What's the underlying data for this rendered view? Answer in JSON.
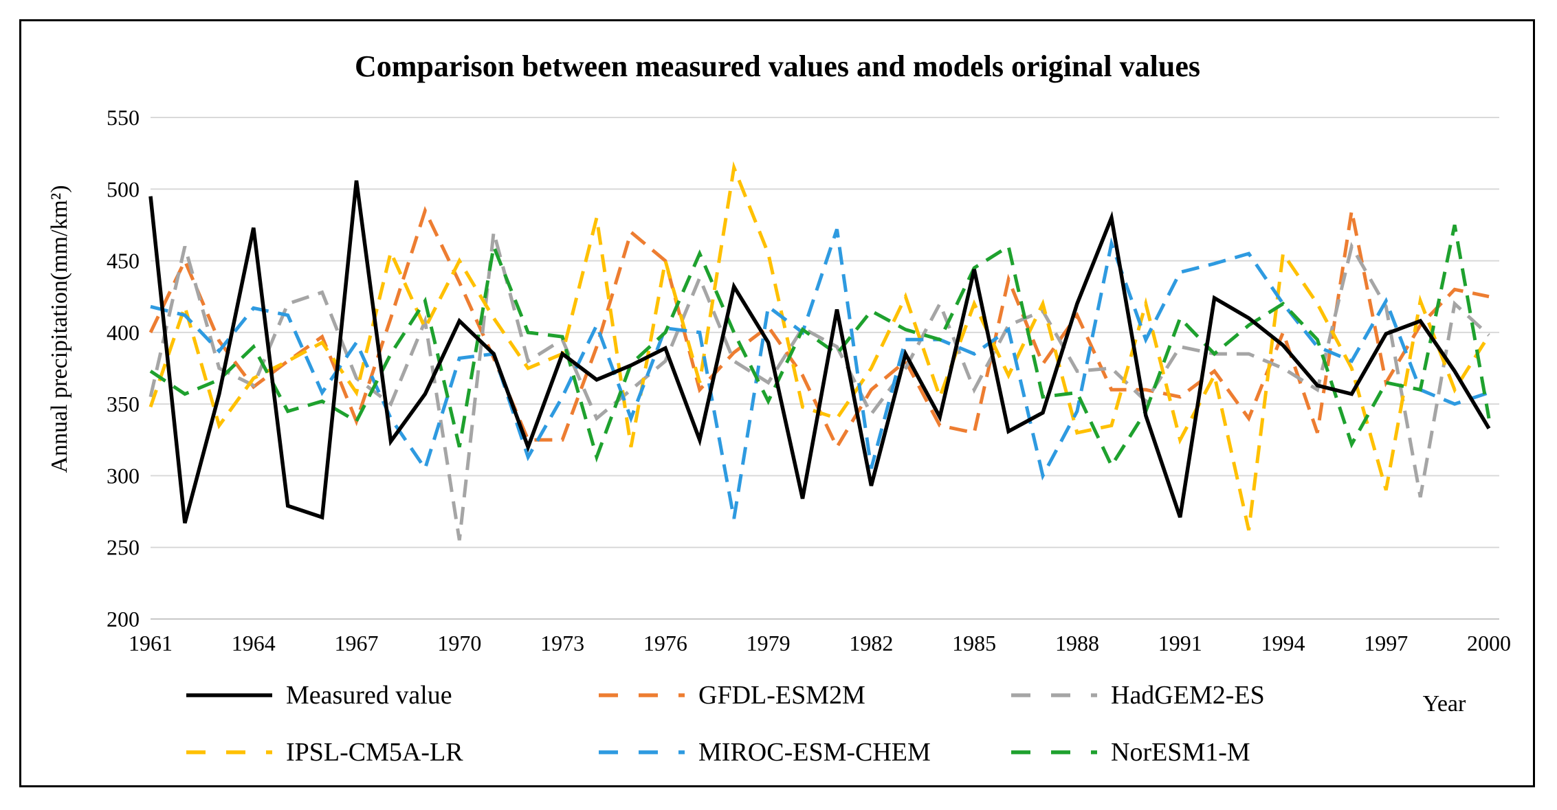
{
  "chart_data": {
    "type": "line",
    "title": "Comparison between measured values and models original values",
    "xlabel": "Year",
    "ylabel": "Annual precipitation(mm/km²)",
    "ylim": [
      200,
      550
    ],
    "yticks": [
      200,
      250,
      300,
      350,
      400,
      450,
      500,
      550
    ],
    "xticks": [
      1961,
      1964,
      1967,
      1970,
      1973,
      1976,
      1979,
      1982,
      1985,
      1988,
      1991,
      1994,
      1997,
      2000
    ],
    "x": [
      1961,
      1962,
      1963,
      1964,
      1965,
      1966,
      1967,
      1968,
      1969,
      1970,
      1971,
      1972,
      1973,
      1974,
      1975,
      1976,
      1977,
      1978,
      1979,
      1980,
      1981,
      1982,
      1983,
      1984,
      1985,
      1986,
      1987,
      1988,
      1989,
      1990,
      1991,
      1992,
      1993,
      1994,
      1995,
      1996,
      1997,
      1998,
      1999,
      2000
    ],
    "grid": true,
    "legend_position": "bottom",
    "series": [
      {
        "name": "Measured value",
        "color": "#000000",
        "dashed": false,
        "values": [
          495,
          267,
          357,
          473,
          279,
          271,
          506,
          324,
          357,
          408,
          385,
          320,
          385,
          367,
          377,
          389,
          325,
          432,
          393,
          284,
          416,
          293,
          385,
          341,
          444,
          331,
          344,
          420,
          480,
          342,
          271,
          424,
          410,
          391,
          363,
          357,
          399,
          408,
          373,
          333
        ]
      },
      {
        "name": "GFDL-ESM2M",
        "color": "#ED7D31",
        "dashed": true,
        "values": [
          400,
          450,
          394,
          362,
          380,
          397,
          338,
          410,
          485,
          435,
          382,
          325,
          325,
          390,
          470,
          450,
          360,
          386,
          404,
          370,
          320,
          360,
          380,
          335,
          330,
          437,
          378,
          412,
          360,
          360,
          355,
          373,
          340,
          400,
          330,
          485,
          365,
          405,
          430,
          425
        ]
      },
      {
        "name": "HadGEM2-ES",
        "color": "#A5A5A5",
        "dashed": true,
        "values": [
          355,
          460,
          375,
          363,
          420,
          428,
          368,
          350,
          408,
          255,
          470,
          380,
          395,
          340,
          360,
          380,
          438,
          380,
          365,
          403,
          390,
          343,
          375,
          420,
          360,
          405,
          415,
          373,
          375,
          352,
          390,
          385,
          385,
          375,
          360,
          460,
          418,
          285,
          420,
          398
        ]
      },
      {
        "name": "IPSL-CM5A-LR",
        "color": "#FFC000",
        "dashed": true,
        "values": [
          348,
          418,
          335,
          368,
          380,
          393,
          358,
          456,
          403,
          450,
          410,
          375,
          385,
          480,
          320,
          450,
          365,
          515,
          455,
          348,
          340,
          375,
          425,
          355,
          420,
          370,
          420,
          330,
          335,
          420,
          325,
          370,
          262,
          455,
          420,
          375,
          290,
          422,
          360,
          398
        ]
      },
      {
        "name": "MIROC-ESM-CHEM",
        "color": "#2E9AE0",
        "dashed": true,
        "values": [
          418,
          412,
          387,
          417,
          412,
          358,
          393,
          340,
          305,
          382,
          385,
          313,
          355,
          405,
          340,
          403,
          400,
          270,
          418,
          400,
          472,
          305,
          395,
          395,
          385,
          402,
          300,
          345,
          462,
          395,
          442,
          448,
          455,
          420,
          390,
          380,
          422,
          360,
          350,
          358
        ]
      },
      {
        "name": "NorESM1-M",
        "color": "#1EA12E",
        "dashed": true,
        "values": [
          373,
          357,
          367,
          390,
          345,
          352,
          338,
          385,
          422,
          320,
          460,
          400,
          397,
          313,
          378,
          400,
          455,
          400,
          352,
          402,
          385,
          415,
          402,
          395,
          445,
          460,
          355,
          358,
          307,
          345,
          410,
          385,
          405,
          420,
          395,
          322,
          365,
          360,
          475,
          340
        ]
      }
    ]
  }
}
